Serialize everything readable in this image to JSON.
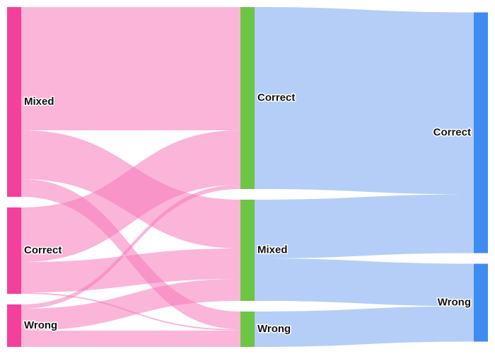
{
  "chart_data": {
    "type": "sankey",
    "nodes": [
      {
        "label": "Mixed",
        "color": "#f5409b"
      },
      {
        "label": "Correct",
        "color": "#f5409b"
      },
      {
        "label": "Wrong",
        "color": "#f5409b"
      },
      {
        "label": "Correct",
        "color": "#6cc644"
      },
      {
        "label": "Mixed",
        "color": "#6cc644"
      },
      {
        "label": "Wrong",
        "color": "#6cc644"
      },
      {
        "label": "Correct",
        "color": "#3f8cf0"
      },
      {
        "label": "Wrong",
        "color": "#3f8cf0"
      }
    ],
    "links": [
      {
        "source": 0,
        "target": 3,
        "value": 174,
        "color": "rgba(247,120,185,0.55)"
      },
      {
        "source": 0,
        "target": 4,
        "value": 69,
        "color": "rgba(247,120,185,0.55)"
      },
      {
        "source": 0,
        "target": 5,
        "value": 25,
        "color": "rgba(247,120,185,0.55)"
      },
      {
        "source": 1,
        "target": 3,
        "value": 77,
        "color": "rgba(247,120,185,0.55)"
      },
      {
        "source": 1,
        "target": 4,
        "value": 43,
        "color": "rgba(247,120,185,0.55)"
      },
      {
        "source": 1,
        "target": 5,
        "value": 2,
        "color": "rgba(247,120,185,0.55)"
      },
      {
        "source": 2,
        "target": 3,
        "value": 6,
        "color": "rgba(247,120,185,0.55)"
      },
      {
        "source": 2,
        "target": 4,
        "value": 31,
        "color": "rgba(247,120,185,0.55)"
      },
      {
        "source": 2,
        "target": 5,
        "value": 23,
        "color": "rgba(247,120,185,0.55)"
      },
      {
        "source": 3,
        "target": 6,
        "value": 257,
        "color": "rgba(140,180,245,0.65)"
      },
      {
        "source": 4,
        "target": 6,
        "value": 83,
        "color": "rgba(140,180,245,0.65)"
      },
      {
        "source": 4,
        "target": 7,
        "value": 60,
        "color": "rgba(140,180,245,0.65)"
      },
      {
        "source": 5,
        "target": 7,
        "value": 50,
        "color": "rgba(140,180,245,0.65)"
      }
    ]
  }
}
